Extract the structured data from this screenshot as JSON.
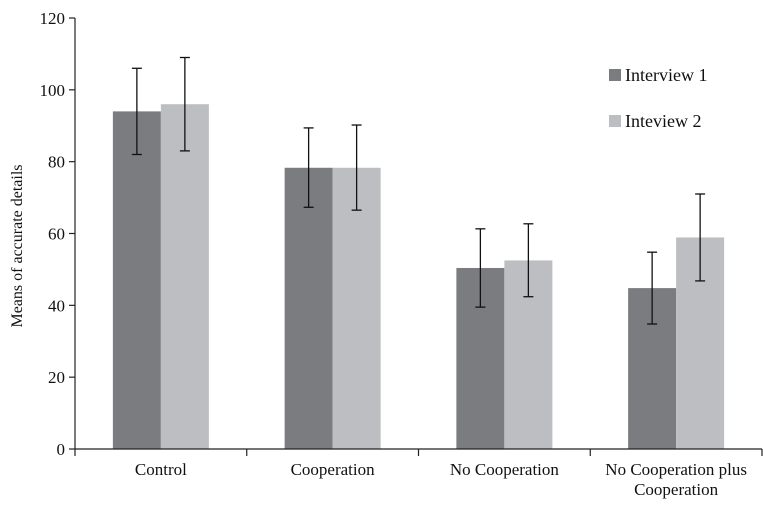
{
  "chart_data": {
    "type": "bar",
    "ylabel": "Means of accurate details",
    "ylim": [
      0,
      120
    ],
    "yticks": [
      0,
      20,
      40,
      60,
      80,
      100,
      120
    ],
    "grid": false,
    "legend_position": "top-right",
    "categories": [
      [
        "Control"
      ],
      [
        "Cooperation"
      ],
      [
        "No Cooperation"
      ],
      [
        "No Cooperation plus",
        "Cooperation"
      ]
    ],
    "series": [
      {
        "name": "Interview 1",
        "color": "#7b7c80",
        "values": [
          94,
          78.3,
          50.4,
          44.8
        ],
        "error_low": [
          82,
          67.3,
          39.5,
          34.8
        ],
        "error_high": [
          106,
          89.4,
          61.3,
          54.8
        ]
      },
      {
        "name": "Inteview 2",
        "color": "#bdbec2",
        "values": [
          96,
          78.3,
          52.5,
          58.9
        ],
        "error_low": [
          83,
          66.5,
          42.4,
          46.8
        ],
        "error_high": [
          109,
          90.2,
          62.7,
          71
        ]
      }
    ]
  }
}
